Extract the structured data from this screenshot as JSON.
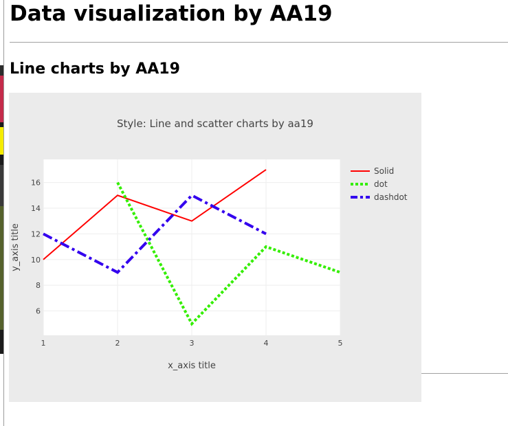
{
  "page": {
    "title": "Data visualization by AA19",
    "section_title": "Line charts by AA19"
  },
  "chart_data": {
    "type": "line",
    "title": "Style: Line and scatter charts by aa19",
    "xlabel": "x_axis title",
    "ylabel": "y_axis title",
    "xlim": [
      1,
      5
    ],
    "ylim": [
      4.1,
      17.8
    ],
    "x_ticks": [
      1,
      2,
      3,
      4,
      5
    ],
    "y_ticks": [
      6,
      8,
      10,
      12,
      14,
      16
    ],
    "grid": true,
    "legend_position": "top-right",
    "series": [
      {
        "name": "Solid",
        "x": [
          1,
          2,
          3,
          4
        ],
        "y": [
          10,
          15,
          13,
          17
        ],
        "color": "#ff0000",
        "dash": "solid"
      },
      {
        "name": "dot",
        "x": [
          2,
          3,
          4,
          5
        ],
        "y": [
          16,
          5,
          11,
          9
        ],
        "color": "#33ee00",
        "dash": "dot"
      },
      {
        "name": "dashdot",
        "x": [
          1,
          2,
          3,
          4
        ],
        "y": [
          12,
          9,
          15,
          12
        ],
        "color": "#3300ee",
        "dash": "dashdot"
      }
    ]
  }
}
